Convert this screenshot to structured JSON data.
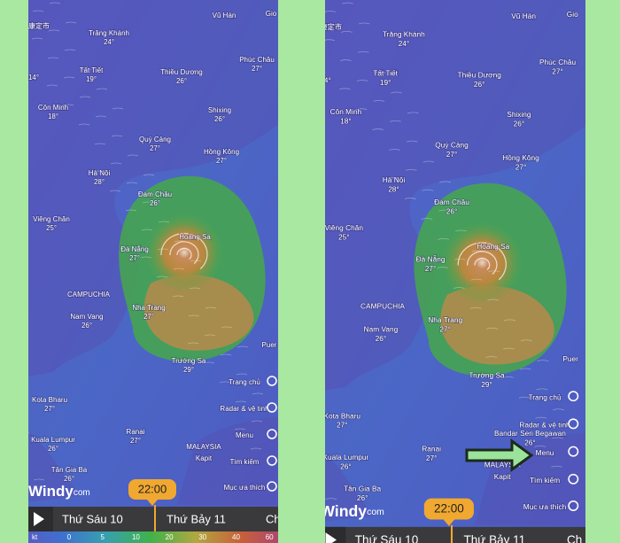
{
  "map": {
    "places": [
      {
        "name": "康定市"
      },
      {
        "name": "Vũ Hán"
      },
      {
        "name": "Gio"
      },
      {
        "name": "Trăng Khánh",
        "temp": "24°"
      },
      {
        "name": "Tất Tiết",
        "temp": "19°"
      },
      {
        "name": "Thiều Dương",
        "temp": "26°"
      },
      {
        "name": "Phúc Châu",
        "temp": "27°"
      },
      {
        "temp": "14°"
      },
      {
        "name": "Côn Minh",
        "temp": "18°"
      },
      {
        "name": "Shixing",
        "temp": "26°"
      },
      {
        "name": "Quý Cảng",
        "temp": "27°"
      },
      {
        "name": "Hồng Kông",
        "temp": "27°"
      },
      {
        "name": "Hà Nội",
        "temp": "28°"
      },
      {
        "name": "Đam Châu",
        "temp": "26°"
      },
      {
        "name": "Viêng Chăn",
        "temp": "25°"
      },
      {
        "name": "Hoàng Sa"
      },
      {
        "name": "Đà Nẵng",
        "temp": "27°"
      },
      {
        "name": "CAMPUCHIA"
      },
      {
        "name": "Nha Trang",
        "temp": "27°"
      },
      {
        "name": "Nam Vang",
        "temp": "26°"
      },
      {
        "name": "Trường Sa",
        "temp": "29°"
      },
      {
        "name": "Puer"
      },
      {
        "name": "Kota Bharu",
        "temp": "27°"
      },
      {
        "name": "Ranai",
        "temp": "27°"
      },
      {
        "name": "Kuala Lumpur",
        "temp": "26°"
      },
      {
        "name": "Tân Gia Ba",
        "temp": "26°"
      },
      {
        "name": "MALAYSIA"
      },
      {
        "name": "Kapit"
      }
    ],
    "extra_place": {
      "name": "Bandar Seri Begawan",
      "temp": "26°"
    }
  },
  "menu": [
    "Trang chủ",
    "Radar & vệ tinh",
    "Menu",
    "Tìm kiếm",
    "Mục ưa thích"
  ],
  "logo": {
    "brand": "Windy",
    "domain": "com"
  },
  "time_bubble": "22:00",
  "timeline": {
    "days": [
      "Thứ Sáu 10",
      "Thứ Bảy 11",
      "Ch"
    ]
  },
  "legend": {
    "unit": "kt",
    "stops": [
      "0",
      "5",
      "10",
      "20",
      "30",
      "40",
      "60"
    ]
  }
}
